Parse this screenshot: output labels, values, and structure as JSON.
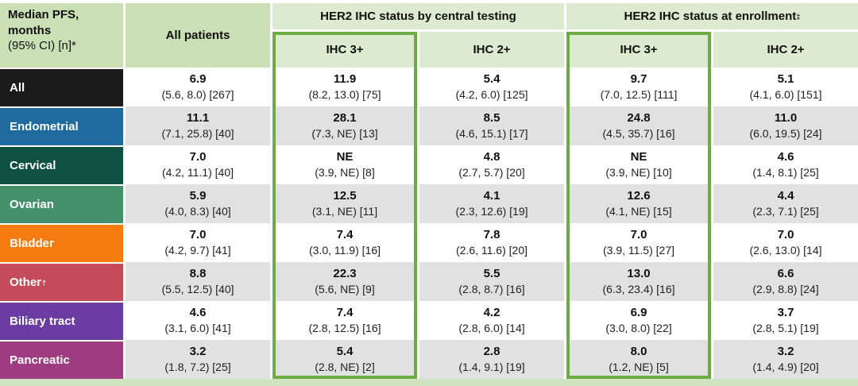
{
  "colors": {
    "header_green_dark": "#cbdfb5",
    "header_green_light": "#dcebd0",
    "highlight_border_green": "#6dab44",
    "row_alt_gray": "#e1e1e1",
    "footer_strip_green": "#cfe3c0",
    "row_label_colors": {
      "All": "#1b1b1b",
      "Endometrial": "#1f6a9e",
      "Cervical": "#0f5242",
      "Ovarian": "#44906a",
      "Bladder": "#f67c0f",
      "Other": "#c54d5b",
      "Biliary tract": "#6b3da3",
      "Pancreatic": "#9e3c82"
    }
  },
  "chart_data": {
    "type": "table",
    "title": "Median PFS, months (95% CI) [n] by tumor type and HER2 IHC status",
    "corner": {
      "title": "Median PFS, months",
      "subtitle": "(95% CI) [n]*"
    },
    "col_all_patients": "All patients",
    "group_central": "HER2 IHC status by central testing",
    "group_enrollment": "HER2 IHC status at enrollment",
    "group_enrollment_sup": "‡",
    "subcolumns": [
      "IHC 3+",
      "IHC 2+",
      "IHC 3+",
      "IHC 2+"
    ],
    "column_keys": [
      "All patients",
      "IHC 3+ central",
      "IHC 2+ central",
      "IHC 3+ enrollment",
      "IHC 2+ enrollment"
    ],
    "rows": [
      {
        "label": "All",
        "label_sup": "",
        "color": "#1b1b1b",
        "cells": [
          {
            "value": "6.9",
            "ci": "(5.6, 8.0) [267]"
          },
          {
            "value": "11.9",
            "ci": "(8.2, 13.0) [75]"
          },
          {
            "value": "5.4",
            "ci": "(4.2, 6.0) [125]"
          },
          {
            "value": "9.7",
            "ci": "(7.0, 12.5) [111]"
          },
          {
            "value": "5.1",
            "ci": "(4.1, 6.0) [151]"
          }
        ]
      },
      {
        "label": "Endometrial",
        "label_sup": "",
        "color": "#1f6a9e",
        "cells": [
          {
            "value": "11.1",
            "ci": "(7.1, 25.8) [40]"
          },
          {
            "value": "28.1",
            "ci": "(7.3, NE) [13]"
          },
          {
            "value": "8.5",
            "ci": "(4.6, 15.1) [17]"
          },
          {
            "value": "24.8",
            "ci": "(4.5, 35.7) [16]"
          },
          {
            "value": "11.0",
            "ci": "(6.0, 19.5) [24]"
          }
        ]
      },
      {
        "label": "Cervical",
        "label_sup": "",
        "color": "#0f5242",
        "cells": [
          {
            "value": "7.0",
            "ci": "(4.2, 11.1) [40]"
          },
          {
            "value": "NE",
            "ci": "(3.9, NE) [8]"
          },
          {
            "value": "4.8",
            "ci": "(2.7, 5.7) [20]"
          },
          {
            "value": "NE",
            "ci": "(3.9, NE) [10]"
          },
          {
            "value": "4.6",
            "ci": "(1.4, 8.1) [25]"
          }
        ]
      },
      {
        "label": "Ovarian",
        "label_sup": "",
        "color": "#44906a",
        "cells": [
          {
            "value": "5.9",
            "ci": "(4.0, 8.3) [40]"
          },
          {
            "value": "12.5",
            "ci": "(3.1, NE) [11]"
          },
          {
            "value": "4.1",
            "ci": "(2.3, 12.6) [19]"
          },
          {
            "value": "12.6",
            "ci": "(4.1, NE) [15]"
          },
          {
            "value": "4.4",
            "ci": "(2.3, 7.1) [25]"
          }
        ]
      },
      {
        "label": "Bladder",
        "label_sup": "",
        "color": "#f67c0f",
        "cells": [
          {
            "value": "7.0",
            "ci": "(4.2, 9.7) [41]"
          },
          {
            "value": "7.4",
            "ci": "(3.0, 11.9) [16]"
          },
          {
            "value": "7.8",
            "ci": "(2.6, 11.6) [20]"
          },
          {
            "value": "7.0",
            "ci": "(3.9, 11.5) [27]"
          },
          {
            "value": "7.0",
            "ci": "(2.6, 13.0) [14]"
          }
        ]
      },
      {
        "label": "Other",
        "label_sup": "†",
        "color": "#c54d5b",
        "cells": [
          {
            "value": "8.8",
            "ci": "(5.5, 12.5) [40]"
          },
          {
            "value": "22.3",
            "ci": "(5.6, NE) [9]"
          },
          {
            "value": "5.5",
            "ci": "(2.8, 8.7) [16]"
          },
          {
            "value": "13.0",
            "ci": "(6.3, 23.4) [16]"
          },
          {
            "value": "6.6",
            "ci": "(2.9, 8.8) [24]"
          }
        ]
      },
      {
        "label": "Biliary tract",
        "label_sup": "",
        "color": "#6b3da3",
        "cells": [
          {
            "value": "4.6",
            "ci": "(3.1, 6.0) [41]"
          },
          {
            "value": "7.4",
            "ci": "(2.8, 12.5) [16]"
          },
          {
            "value": "4.2",
            "ci": "(2.8, 6.0) [14]"
          },
          {
            "value": "6.9",
            "ci": "(3.0, 8.0) [22]"
          },
          {
            "value": "3.7",
            "ci": "(2.8, 5.1) [19]"
          }
        ]
      },
      {
        "label": "Pancreatic",
        "label_sup": "",
        "color": "#9e3c82",
        "cells": [
          {
            "value": "3.2",
            "ci": "(1.8, 7.2) [25]"
          },
          {
            "value": "5.4",
            "ci": "(2.8, NE) [2]"
          },
          {
            "value": "2.8",
            "ci": "(1.4, 9.1) [19]"
          },
          {
            "value": "8.0",
            "ci": "(1.2, NE) [5]"
          },
          {
            "value": "3.2",
            "ci": "(1.4, 4.9) [20]"
          }
        ]
      }
    ]
  }
}
